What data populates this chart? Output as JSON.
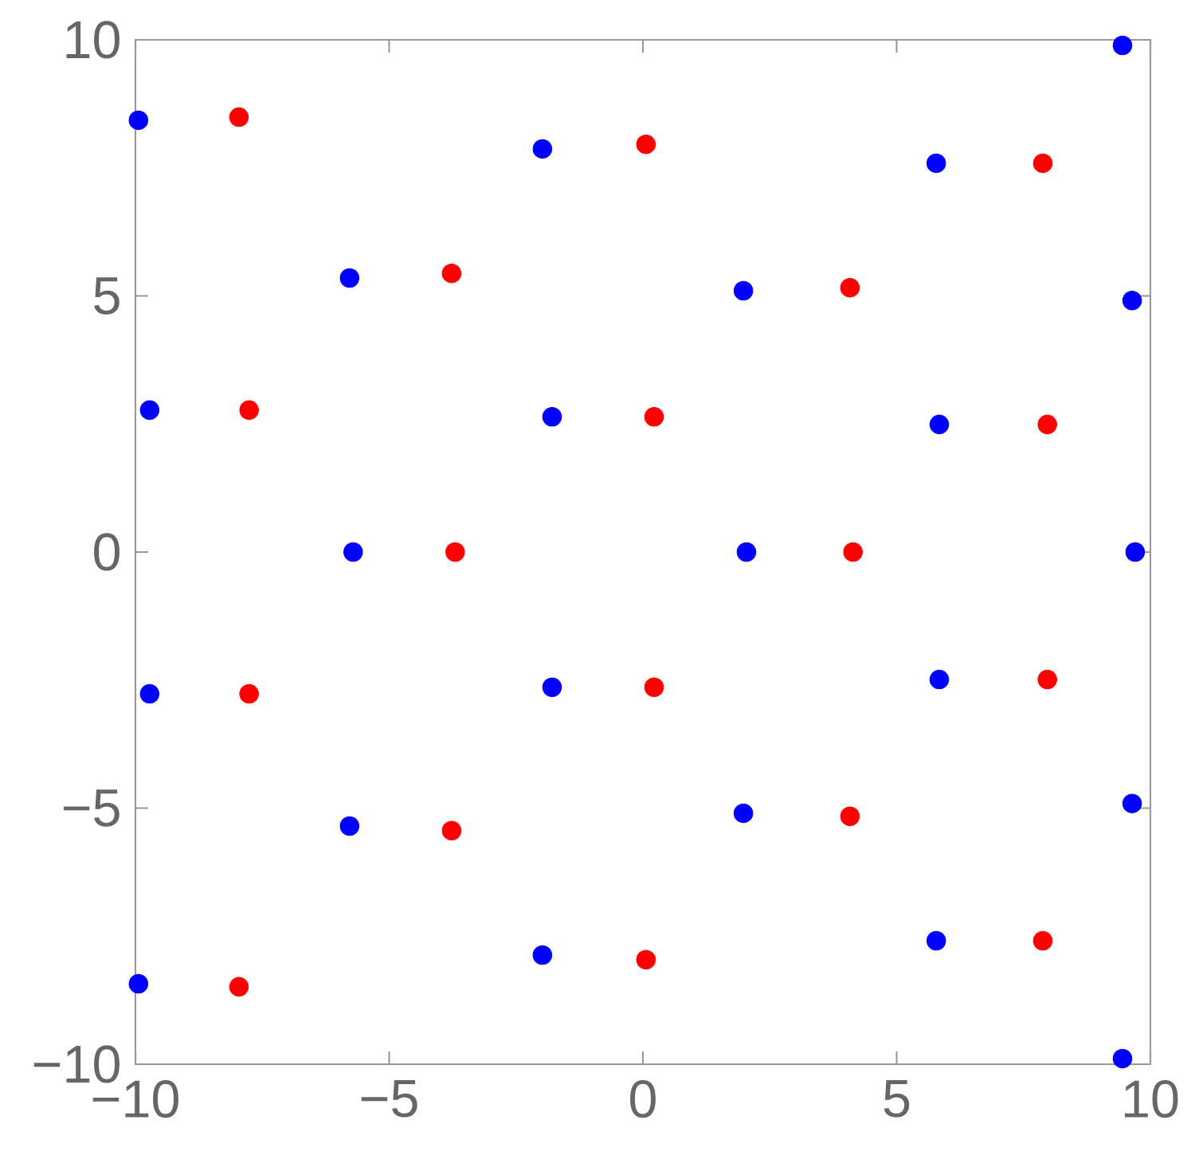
{
  "chart_data": {
    "type": "scatter",
    "xlim": [
      -10,
      10
    ],
    "ylim": [
      -10,
      10
    ],
    "xticks": [
      {
        "value": -10,
        "label": "−10"
      },
      {
        "value": -5,
        "label": "−5"
      },
      0,
      5,
      10
    ],
    "yticks": [
      {
        "value": -10,
        "label": "−10"
      },
      {
        "value": -5,
        "label": "−5"
      },
      0,
      5,
      10
    ],
    "grid": false,
    "marker": "circle",
    "series": [
      {
        "color": "#0000ff",
        "x": [
          -9.94,
          -1.98,
          5.78,
          9.45,
          -5.78,
          1.98,
          9.64,
          -9.72,
          -1.79,
          5.84,
          -5.71,
          2.04,
          9.7,
          -9.72,
          -1.79,
          5.84,
          -5.78,
          1.98,
          9.64,
          -9.94,
          -1.98,
          5.78,
          9.45
        ],
        "values": [
          8.43,
          7.87,
          7.59,
          9.89,
          5.35,
          5.1,
          4.91,
          2.77,
          2.64,
          2.49,
          0,
          0,
          0,
          -2.77,
          -2.64,
          -2.49,
          -5.35,
          -5.1,
          -4.91,
          -8.43,
          -7.87,
          -7.59,
          -9.89
        ]
      },
      {
        "color": "#ff0000",
        "x": [
          -7.96,
          0.06,
          7.88,
          -3.77,
          4.08,
          -7.76,
          0.22,
          7.97,
          -3.7,
          4.14,
          -7.76,
          0.22,
          7.97,
          -3.77,
          4.08,
          -7.96,
          0.06,
          7.88
        ],
        "values": [
          8.49,
          7.96,
          7.59,
          5.44,
          5.16,
          2.77,
          2.64,
          2.49,
          0,
          0,
          -2.77,
          -2.64,
          -2.49,
          -5.44,
          -5.16,
          -8.49,
          -7.96,
          -7.59
        ]
      }
    ]
  }
}
